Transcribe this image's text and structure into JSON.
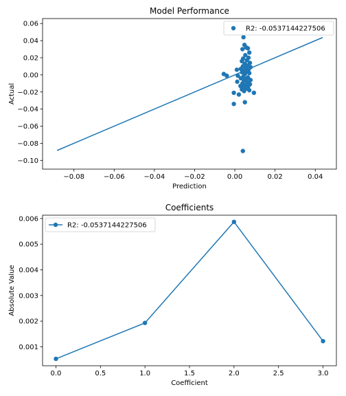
{
  "chart_data": [
    {
      "type": "scatter",
      "title": "Model Performance",
      "xlabel": "Prediction",
      "ylabel": "Actual",
      "xlim": [
        -0.0956,
        0.0505
      ],
      "ylim": [
        -0.1102,
        0.0658
      ],
      "xticks": [
        -0.08,
        -0.06,
        -0.04,
        -0.02,
        0.0,
        0.02,
        0.04
      ],
      "xtick_labels": [
        "−0.08",
        "−0.06",
        "−0.04",
        "−0.02",
        "0.00",
        "0.02",
        "0.04"
      ],
      "yticks": [
        -0.1,
        -0.08,
        -0.06,
        -0.04,
        -0.02,
        0.0,
        0.02,
        0.04,
        0.06
      ],
      "ytick_labels": [
        "−0.10",
        "−0.08",
        "−0.06",
        "−0.04",
        "−0.02",
        "0.00",
        "0.02",
        "0.04",
        "0.06"
      ],
      "grid": false,
      "legend_position": "top-right",
      "color": "#1f77b4",
      "series": [
        {
          "name": "R2: -0.0537144227506",
          "kind": "scatter",
          "points": [
            [
              0.0048,
              0.035
            ],
            [
              0.0065,
              0.031
            ],
            [
              0.0043,
              0.044
            ],
            [
              0.0057,
              0.032
            ],
            [
              0.0038,
              0.03
            ],
            [
              0.0072,
              0.026
            ],
            [
              0.0052,
              0.023
            ],
            [
              0.0068,
              0.02
            ],
            [
              0.0041,
              0.019
            ],
            [
              0.006,
              0.017
            ],
            [
              0.0035,
              0.016
            ],
            [
              0.0075,
              0.014
            ],
            [
              0.0049,
              0.013
            ],
            [
              0.0062,
              0.011
            ],
            [
              0.004,
              0.01
            ],
            [
              0.0078,
              0.009
            ],
            [
              0.0055,
              0.008
            ],
            [
              0.003,
              0.007
            ],
            [
              0.0068,
              0.006
            ],
            [
              0.0047,
              0.005
            ],
            [
              0.001,
              0.006
            ],
            [
              0.0058,
              0.004
            ],
            [
              0.0036,
              0.003
            ],
            [
              0.0072,
              0.002
            ],
            [
              0.005,
              0.001
            ],
            [
              -0.0055,
              0.001
            ],
            [
              -0.004,
              -0.001
            ],
            [
              0.0015,
              -0.001
            ],
            [
              0.0043,
              -0.002
            ],
            [
              0.0065,
              -0.003
            ],
            [
              0.003,
              -0.004
            ],
            [
              0.0057,
              -0.005
            ],
            [
              0.0078,
              -0.006
            ],
            [
              0.0045,
              -0.007
            ],
            [
              0.0012,
              -0.008
            ],
            [
              0.0063,
              -0.009
            ],
            [
              0.0038,
              -0.01
            ],
            [
              0.0075,
              -0.011
            ],
            [
              0.0052,
              -0.012
            ],
            [
              0.0028,
              -0.013
            ],
            [
              0.0066,
              -0.014
            ],
            [
              0.0042,
              -0.015
            ],
            [
              0.0058,
              -0.016
            ],
            [
              0.0035,
              -0.017
            ],
            [
              0.0072,
              -0.018
            ],
            [
              0.0046,
              -0.019
            ],
            [
              0.0095,
              -0.021
            ],
            [
              -0.0005,
              -0.021
            ],
            [
              0.002,
              -0.023
            ],
            [
              0.005,
              -0.032
            ],
            [
              -0.0005,
              -0.034
            ],
            [
              0.004,
              -0.089
            ]
          ]
        },
        {
          "name": "",
          "kind": "line",
          "points": [
            [
              -0.0884,
              -0.0884
            ],
            [
              0.0437,
              0.0437
            ]
          ]
        }
      ]
    },
    {
      "type": "line",
      "title": "Coefficients",
      "xlabel": "Coefficient",
      "ylabel": "Absolute Value",
      "xlim": [
        -0.15,
        3.15
      ],
      "ylim": [
        0.00026,
        0.00613
      ],
      "xticks": [
        0.0,
        0.5,
        1.0,
        1.5,
        2.0,
        2.5,
        3.0
      ],
      "xtick_labels": [
        "0.0",
        "0.5",
        "1.0",
        "1.5",
        "2.0",
        "2.5",
        "3.0"
      ],
      "yticks": [
        0.001,
        0.002,
        0.003,
        0.004,
        0.005,
        0.006
      ],
      "ytick_labels": [
        "0.001",
        "0.002",
        "0.003",
        "0.004",
        "0.005",
        "0.006"
      ],
      "grid": false,
      "legend_position": "top-left",
      "color": "#1f77b4",
      "series": [
        {
          "name": "R2: -0.0537144227506",
          "kind": "line-markers",
          "points": [
            [
              0,
              0.00053
            ],
            [
              1,
              0.00193
            ],
            [
              2,
              0.00587
            ],
            [
              3,
              0.00122
            ]
          ]
        }
      ]
    }
  ]
}
